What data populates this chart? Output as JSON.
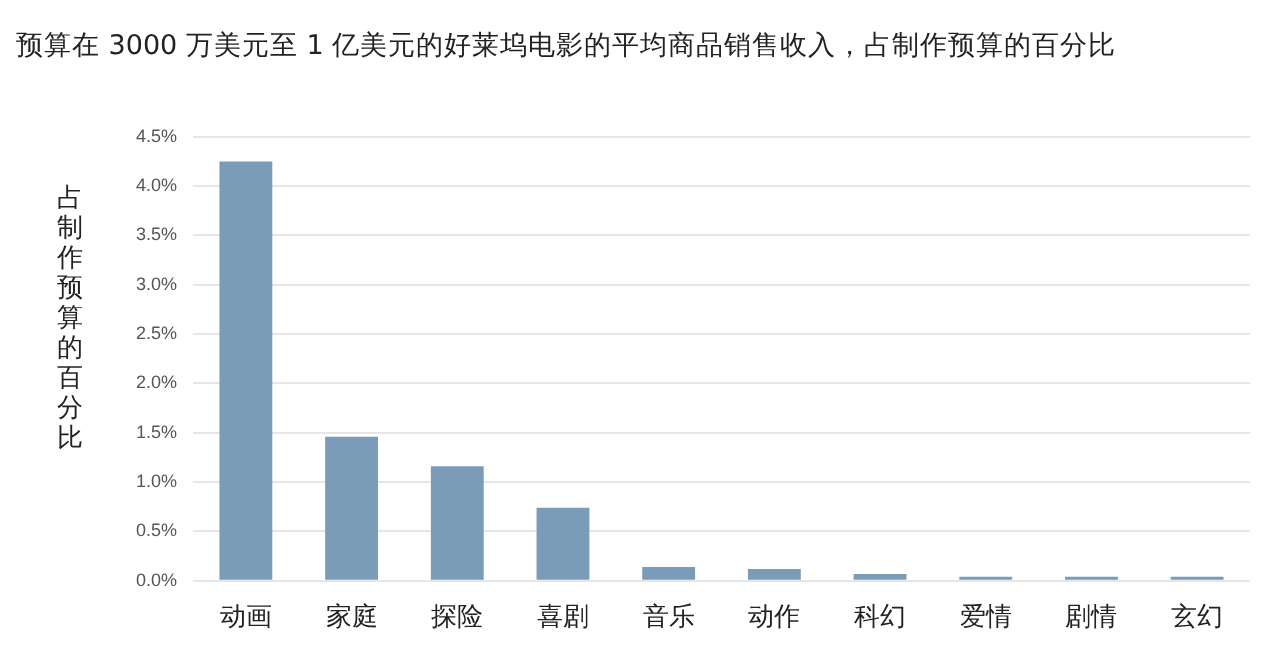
{
  "chart_data": {
    "type": "bar",
    "title": "预算在 3000 万美元至 1 亿美元的好莱坞电影的平均商品销售收入，占制作预算的百分比",
    "ylabel": "占制作预算的百分比",
    "categories": [
      "动画",
      "家庭",
      "探险",
      "喜剧",
      "音乐",
      "动作",
      "科幻",
      "爱情",
      "剧情",
      "玄幻"
    ],
    "values": [
      4.25,
      1.46,
      1.16,
      0.74,
      0.14,
      0.12,
      0.07,
      0.03,
      0.02,
      0.01
    ],
    "color": "#7a9cb8",
    "ylim": [
      0,
      4.5
    ],
    "yticks": [
      {
        "value": 0,
        "label": "0.0%"
      },
      {
        "value": 0.5,
        "label": "0.5%"
      },
      {
        "value": 1,
        "label": "1.0%"
      },
      {
        "value": 1.5,
        "label": "1.5%"
      },
      {
        "value": 2,
        "label": "2.0%"
      },
      {
        "value": 2.5,
        "label": "2.5%"
      },
      {
        "value": 3,
        "label": "3.0%"
      },
      {
        "value": 3.5,
        "label": "3.5%"
      },
      {
        "value": 4,
        "label": "4.0%"
      },
      {
        "value": 4.5,
        "label": "4.5%"
      }
    ],
    "grid": "y",
    "legend": false
  }
}
